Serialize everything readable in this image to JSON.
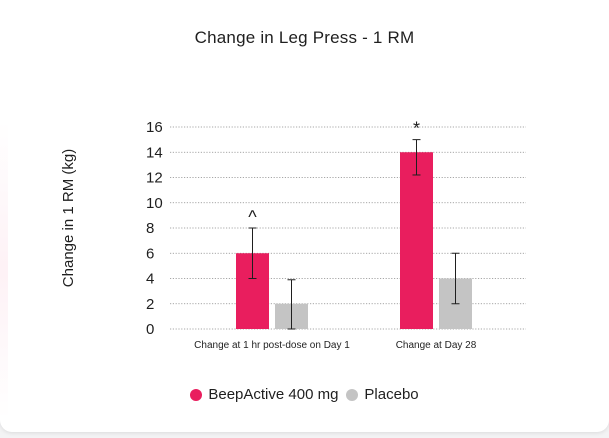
{
  "chart_data": {
    "type": "bar",
    "title": "Change in Leg Press - 1 RM",
    "xlabel": "",
    "ylabel": "Change in 1 RM (kg)",
    "ylim": [
      0,
      16
    ],
    "yticks": [
      "0",
      "2",
      "4",
      "6",
      "8",
      "10",
      "12",
      "14",
      "16"
    ],
    "grid": true,
    "legend_position": "bottom",
    "categories": [
      "Change at 1 hr post-dose on Day 1",
      "Change at Day 28"
    ],
    "series": [
      {
        "name": "BeepActive 400 mg",
        "color": "#e91e5e",
        "values": [
          6,
          14
        ],
        "error": [
          [
            4,
            8
          ],
          [
            12.2,
            15
          ]
        ],
        "annotations": [
          "^",
          "*"
        ]
      },
      {
        "name": "Placebo",
        "color": "#c4c4c4",
        "values": [
          2,
          4
        ],
        "error": [
          [
            0,
            3.9
          ],
          [
            2,
            6
          ]
        ],
        "annotations": [
          "",
          ""
        ]
      }
    ]
  }
}
